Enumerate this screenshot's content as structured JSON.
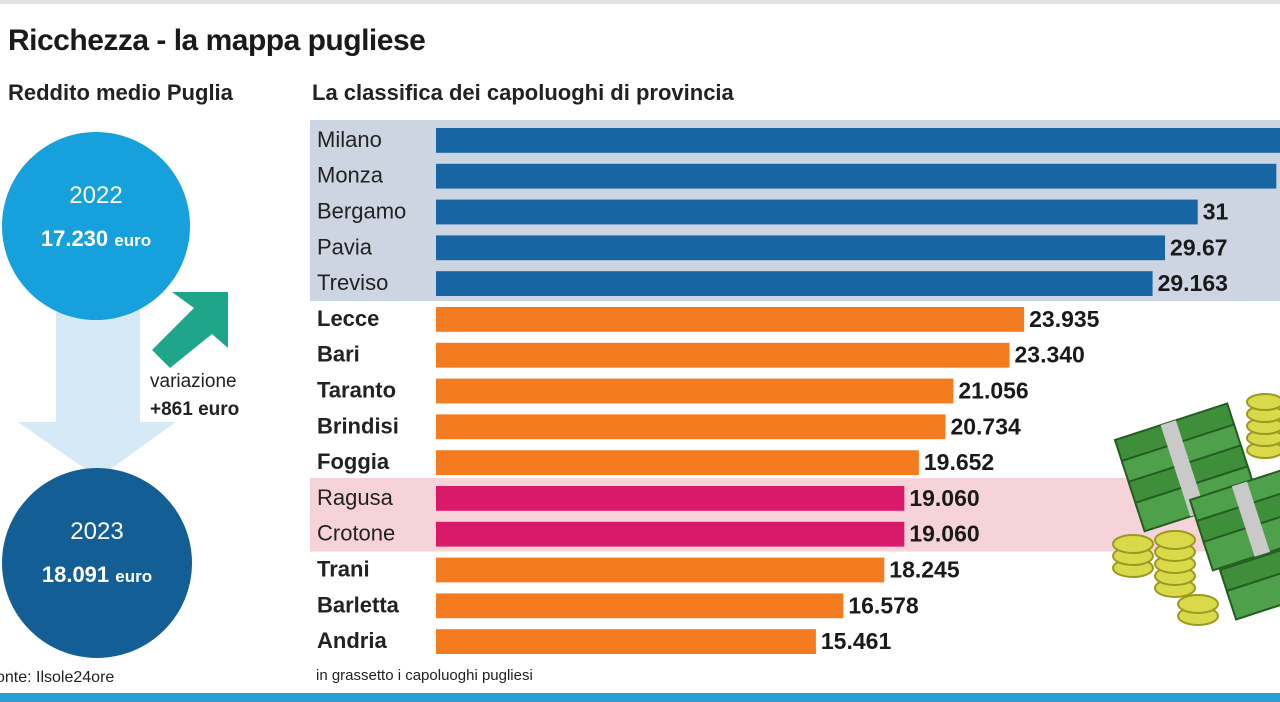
{
  "title": "Ricchezza - la mappa pugliese",
  "left": {
    "subtitle": "Reddito medio Puglia",
    "y2022": {
      "year": "2022",
      "amount": "17.230",
      "unit": "euro"
    },
    "y2023": {
      "year": "2023",
      "amount": "18.091",
      "unit": "euro"
    },
    "variazione_label": "variazione",
    "variazione_value": "+861 euro",
    "source": "onte: Ilsole24ore"
  },
  "chart_subtitle": "La classifica dei capoluoghi di provincia",
  "footnote": "in grassetto i capoluoghi pugliesi",
  "colors": {
    "top": "#1766a3",
    "puglia": "#f47b20",
    "bottom": "#d91a6b",
    "band_top": "#cdd5e3",
    "band_bottom": "#f6d3d9",
    "circle_2022": "#16a0dc",
    "circle_2023": "#145e96",
    "arrow": "#1ea58a"
  },
  "icons": [
    "up-right-arrow-icon",
    "down-arrow-icon",
    "money-stack-icon"
  ],
  "chart_data": {
    "type": "bar",
    "orientation": "horizontal",
    "title": "La classifica dei capoluoghi di provincia",
    "xlim": [
      0,
      35000
    ],
    "categories": [
      "Milano",
      "Monza",
      "Bergamo",
      "Pavia",
      "Treviso",
      "Lecce",
      "Bari",
      "Taranto",
      "Brindisi",
      "Foggia",
      "Ragusa",
      "Crotone",
      "Trani",
      "Barletta",
      "Andria"
    ],
    "values": [
      34500,
      34200,
      31000,
      29670,
      29163,
      23935,
      23340,
      21056,
      20734,
      19652,
      19060,
      19060,
      18245,
      16578,
      15461
    ],
    "labels": [
      "",
      "",
      "31",
      "29.67",
      "29.163",
      "23.935",
      "23.340",
      "21.056",
      "20.734",
      "19.652",
      "19.060",
      "19.060",
      "18.245",
      "16.578",
      "15.461"
    ],
    "groups": [
      "top",
      "top",
      "top",
      "top",
      "top",
      "puglia",
      "puglia",
      "puglia",
      "puglia",
      "puglia",
      "bottom",
      "bottom",
      "puglia",
      "puglia",
      "puglia"
    ],
    "bold": [
      false,
      false,
      false,
      false,
      false,
      true,
      true,
      true,
      true,
      true,
      false,
      false,
      true,
      true,
      true
    ]
  }
}
